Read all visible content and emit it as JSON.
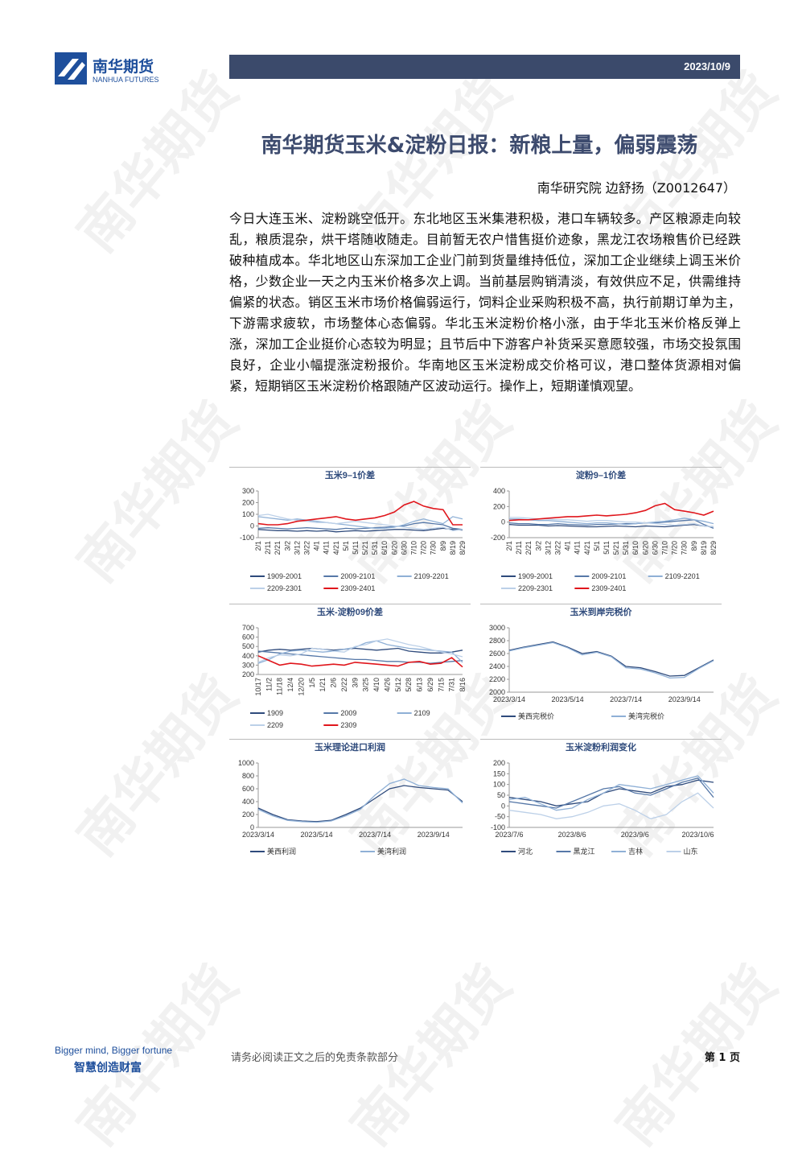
{
  "header": {
    "logo_cn": "南华期货",
    "logo_en": "NANHUA FUTURES",
    "date": "2023/10/9"
  },
  "title": "南华期货玉米&淀粉日报：新粮上量，偏弱震荡",
  "author": "南华研究院 边舒扬（Z0012647）",
  "body": "今日大连玉米、淀粉跳空低开。东北地区玉米集港积极，港口车辆较多。产区粮源走向较乱，粮质混杂，烘干塔随收随走。目前暂无农户惜售挺价迹象，黑龙江农场粮售价已经跌破种植成本。华北地区山东深加工企业门前到货量维持低位，深加工企业继续上调玉米价格，少数企业一天之内玉米价格多次上调。当前基层购销清淡，有效供应不足，供需维持偏紧的状态。销区玉米市场价格偏弱运行，饲料企业采购积极不高，执行前期订单为主，下游需求疲软，市场整体心态偏弱。华北玉米淀粉价格小涨，由于华北玉米价格反弹上涨，深加工企业挺价心态较为明显；且节后中下游客户补货采买意愿较强，市场交投氛围良好，企业小幅提涨淀粉报价。华南地区玉米淀粉成交价格可议，港口整体货源相对偏紧，短期销区玉米淀粉价格跟随产区波动运行。操作上，短期谨慎观望。",
  "chart_data": [
    {
      "type": "line",
      "title": "玉米9–1价差",
      "legend": "bottom",
      "categories": [
        "2/1",
        "2/11",
        "2/21",
        "3/2",
        "3/12",
        "3/22",
        "4/1",
        "4/11",
        "4/21",
        "5/1",
        "5/11",
        "5/21",
        "5/31",
        "6/10",
        "6/20",
        "6/30",
        "7/10",
        "7/20",
        "7/30",
        "8/9",
        "8/19",
        "8/29"
      ],
      "ylim": [
        -100,
        300
      ],
      "yticks": [
        -100,
        0,
        100,
        200,
        300
      ],
      "series": [
        {
          "name": "1909-2001",
          "color": "#2f4b7c",
          "values": [
            -30,
            -35,
            -40,
            -40,
            -45,
            -40,
            -45,
            -40,
            -50,
            -45,
            -40,
            -45,
            -40,
            -35,
            -30,
            -30,
            -35,
            -40,
            -30,
            -20,
            -30,
            -35
          ]
        },
        {
          "name": "2009-2101",
          "color": "#5678a8",
          "values": [
            -20,
            -15,
            -20,
            -25,
            -20,
            -15,
            -20,
            -25,
            -30,
            -20,
            -25,
            -20,
            -15,
            -10,
            -5,
            0,
            20,
            30,
            20,
            10,
            -20,
            -30
          ]
        },
        {
          "name": "2109-2201",
          "color": "#8fb0d6",
          "values": [
            80,
            70,
            60,
            50,
            60,
            50,
            40,
            30,
            20,
            10,
            0,
            -10,
            -20,
            -20,
            -10,
            10,
            40,
            60,
            40,
            20,
            80,
            60
          ]
        },
        {
          "name": "2209-2301",
          "color": "#bcd0e8",
          "values": [
            90,
            100,
            80,
            60,
            50,
            40,
            30,
            30,
            20,
            30,
            40,
            30,
            20,
            10,
            0,
            -10,
            -20,
            -30,
            -20,
            -10,
            -40,
            -30
          ]
        },
        {
          "name": "2309-2401",
          "color": "#e0161c",
          "values": [
            20,
            10,
            10,
            20,
            40,
            50,
            60,
            70,
            80,
            60,
            50,
            60,
            70,
            90,
            120,
            180,
            210,
            170,
            150,
            140,
            10,
            10
          ]
        }
      ]
    },
    {
      "type": "line",
      "title": "淀粉9–1价差",
      "legend": "bottom",
      "categories": [
        "2/1",
        "2/11",
        "2/21",
        "3/2",
        "3/12",
        "3/22",
        "4/1",
        "4/11",
        "4/21",
        "5/1",
        "5/11",
        "5/21",
        "5/31",
        "6/10",
        "6/20",
        "6/30",
        "7/10",
        "7/20",
        "7/30",
        "8/9",
        "8/19",
        "8/29"
      ],
      "ylim": [
        -200,
        400
      ],
      "yticks": [
        -200,
        0,
        200,
        400
      ],
      "series": [
        {
          "name": "1909-2001",
          "color": "#2f4b7c",
          "values": [
            -30,
            -40,
            -40,
            -40,
            -50,
            -45,
            -50,
            -55,
            -60,
            -60,
            -55,
            -50,
            -55,
            -60,
            -50,
            -55,
            -60,
            -50,
            -40,
            -30,
            -50,
            -60
          ]
        },
        {
          "name": "2009-2101",
          "color": "#5678a8",
          "values": [
            -10,
            -20,
            -20,
            -30,
            -30,
            -20,
            -30,
            -35,
            -40,
            -30,
            -30,
            -25,
            -20,
            -20,
            -10,
            -10,
            0,
            10,
            20,
            30,
            -30,
            -80
          ]
        },
        {
          "name": "2109-2201",
          "color": "#8fb0d6",
          "values": [
            40,
            40,
            30,
            20,
            20,
            10,
            0,
            -10,
            -20,
            -10,
            -10,
            -20,
            -30,
            -20,
            -10,
            0,
            10,
            30,
            50,
            30,
            10,
            -20
          ]
        },
        {
          "name": "2209-2301",
          "color": "#bcd0e8",
          "values": [
            60,
            60,
            50,
            40,
            40,
            30,
            30,
            20,
            10,
            20,
            20,
            10,
            0,
            0,
            -10,
            -20,
            -30,
            -40,
            -30,
            -20,
            -50,
            -60
          ]
        },
        {
          "name": "2309-2401",
          "color": "#e0161c",
          "values": [
            20,
            30,
            30,
            40,
            50,
            60,
            70,
            70,
            80,
            90,
            80,
            90,
            100,
            120,
            150,
            210,
            240,
            160,
            140,
            120,
            90,
            140
          ]
        }
      ]
    },
    {
      "type": "line",
      "title": "玉米-淀粉09价差",
      "legend": "bottom",
      "categories": [
        "10/17",
        "11/2",
        "11/18",
        "12/4",
        "12/20",
        "1/5",
        "1/21",
        "2/6",
        "2/22",
        "3/9",
        "3/25",
        "4/10",
        "4/26",
        "5/12",
        "5/28",
        "6/13",
        "6/29",
        "7/15",
        "7/31",
        "8/16"
      ],
      "ylim": [
        200,
        700
      ],
      "yticks": [
        200,
        300,
        400,
        500,
        600,
        700
      ],
      "series": [
        {
          "name": "1909",
          "color": "#2f4b7c",
          "values": [
            440,
            460,
            470,
            460,
            470,
            480,
            470,
            460,
            470,
            480,
            470,
            460,
            470,
            480,
            450,
            440,
            430,
            430,
            440,
            460
          ]
        },
        {
          "name": "2009",
          "color": "#5678a8",
          "values": [
            450,
            440,
            430,
            420,
            410,
            400,
            390,
            380,
            370,
            360,
            360,
            350,
            340,
            340,
            330,
            330,
            320,
            330,
            340,
            350
          ]
        },
        {
          "name": "2109",
          "color": "#8fb0d6",
          "values": [
            320,
            360,
            420,
            450,
            460,
            450,
            440,
            450,
            470,
            490,
            540,
            560,
            520,
            500,
            480,
            470,
            460,
            450,
            440,
            330
          ]
        },
        {
          "name": "2209",
          "color": "#bcd0e8",
          "values": [
            330,
            380,
            410,
            400,
            420,
            480,
            470,
            450,
            440,
            500,
            520,
            560,
            580,
            550,
            520,
            500,
            470,
            440,
            420,
            390
          ]
        },
        {
          "name": "2309",
          "color": "#e0161c",
          "values": [
            400,
            350,
            300,
            320,
            310,
            290,
            300,
            310,
            300,
            330,
            320,
            310,
            300,
            290,
            330,
            340,
            310,
            320,
            380,
            280
          ]
        }
      ]
    },
    {
      "type": "line",
      "title": "玉米到岸完税价",
      "legend": "bottom",
      "categories": [
        "2023/3/14",
        null,
        null,
        null,
        "2023/5/14",
        null,
        null,
        null,
        "2023/7/14",
        null,
        null,
        null,
        "2023/9/14",
        null,
        null
      ],
      "ylim": [
        2000,
        3000
      ],
      "yticks": [
        2000,
        2200,
        2400,
        2600,
        2800,
        3000
      ],
      "series": [
        {
          "name": "美西完税价",
          "color": "#2f4b7c",
          "values": [
            2650,
            2700,
            2740,
            2780,
            2700,
            2600,
            2630,
            2560,
            2400,
            2380,
            2320,
            2250,
            2260,
            2380,
            2500
          ]
        },
        {
          "name": "美湾完税价",
          "color": "#8fb0d6",
          "values": [
            2640,
            2690,
            2730,
            2770,
            2690,
            2580,
            2620,
            2550,
            2380,
            2360,
            2300,
            2220,
            2230,
            2370,
            2490
          ]
        }
      ]
    },
    {
      "type": "line",
      "title": "玉米理论进口利润",
      "legend": "bottom",
      "categories": [
        "2023/3/14",
        null,
        null,
        null,
        "2023/5/14",
        null,
        null,
        null,
        "2023/7/14",
        null,
        null,
        null,
        "2023/9/14",
        null,
        null
      ],
      "ylim": [
        0,
        1000
      ],
      "yticks": [
        0,
        200,
        400,
        600,
        800,
        1000
      ],
      "series": [
        {
          "name": "美西利润",
          "color": "#2f4b7c",
          "values": [
            300,
            200,
            120,
            100,
            90,
            110,
            200,
            300,
            450,
            600,
            650,
            620,
            600,
            580,
            400
          ]
        },
        {
          "name": "美湾利润",
          "color": "#8fb0d6",
          "values": [
            280,
            180,
            110,
            90,
            80,
            100,
            180,
            280,
            500,
            680,
            750,
            650,
            620,
            600,
            380
          ]
        }
      ]
    },
    {
      "type": "line",
      "title": "玉米淀粉利润变化",
      "legend": "bottom",
      "categories": [
        "2023/7/6",
        null,
        null,
        null,
        "2023/8/6",
        null,
        null,
        null,
        "2023/9/6",
        null,
        null,
        null,
        "2023/10/6",
        null
      ],
      "ylim": [
        -100,
        200
      ],
      "yticks": [
        -100,
        -50,
        0,
        50,
        100,
        150,
        200
      ],
      "series": [
        {
          "name": "河北",
          "color": "#2f4b7c",
          "values": [
            40,
            30,
            20,
            0,
            10,
            20,
            60,
            80,
            70,
            60,
            90,
            100,
            120,
            110
          ]
        },
        {
          "name": "黑龙江",
          "color": "#5678a8",
          "values": [
            20,
            10,
            0,
            -10,
            20,
            50,
            80,
            90,
            60,
            50,
            80,
            110,
            130,
            40
          ]
        },
        {
          "name": "吉林",
          "color": "#8fb0d6",
          "values": [
            30,
            40,
            10,
            -20,
            -10,
            30,
            60,
            100,
            90,
            80,
            100,
            120,
            140,
            60
          ]
        },
        {
          "name": "山东",
          "color": "#bcd0e8",
          "values": [
            -20,
            -30,
            -40,
            -60,
            -50,
            -30,
            0,
            10,
            -20,
            -60,
            -40,
            20,
            60,
            -10
          ]
        }
      ]
    }
  ],
  "footer": {
    "slogan_en": "Bigger mind, Bigger fortune",
    "slogan_cn": "智慧创造财富",
    "disclaimer": "请务必阅读正文之后的免责条款部分",
    "page": "第 1 页"
  },
  "watermark": "南华期货"
}
